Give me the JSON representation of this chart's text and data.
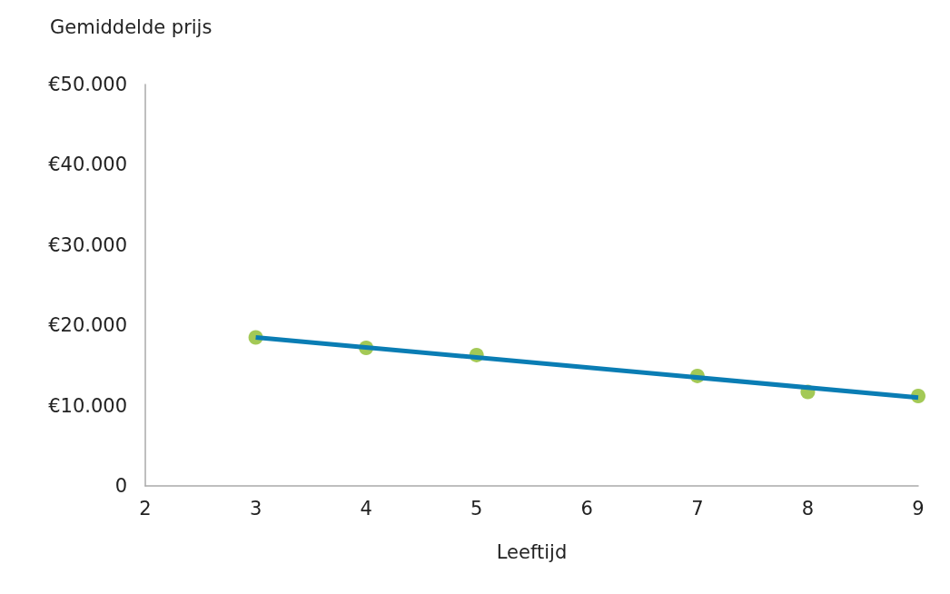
{
  "chart_data": {
    "type": "scatter",
    "ylabel": "Gemiddelde prijs",
    "xlabel": "Leeftijd",
    "xlim": [
      2,
      9
    ],
    "xticks": [
      2,
      3,
      4,
      5,
      6,
      7,
      8,
      9
    ],
    "ylim": [
      0,
      50000
    ],
    "yticks": [
      {
        "value": 0,
        "label": "0"
      },
      {
        "value": 10000,
        "label": "€10.000"
      },
      {
        "value": 20000,
        "label": "€20.000"
      },
      {
        "value": 30000,
        "label": "€30.000"
      },
      {
        "value": 40000,
        "label": "€40.000"
      },
      {
        "value": 50000,
        "label": "€50.000"
      }
    ],
    "grid": false,
    "series": [
      {
        "type": "line",
        "color": "#0a7db4",
        "x": [
          3,
          9
        ],
        "values": [
          18500,
          11000
        ],
        "marker": "none",
        "line_style": "solid"
      },
      {
        "color": "#8cbb2c",
        "x": [
          3,
          4,
          5,
          7,
          8,
          9
        ],
        "values": [
          18500,
          17200,
          16300,
          13700,
          11700,
          11200
        ],
        "marker": "circle"
      }
    ]
  }
}
